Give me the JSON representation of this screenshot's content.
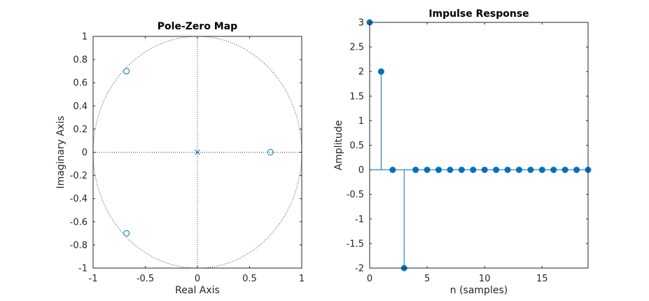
{
  "chart_data": [
    {
      "type": "scatter",
      "title": "Pole-Zero Map",
      "xlabel": "Real Axis",
      "ylabel": "Imaginary Axis",
      "xlim": [
        -1,
        1
      ],
      "ylim": [
        -1,
        1
      ],
      "xticks": [
        -1,
        -0.5,
        0,
        0.5,
        1
      ],
      "xtick_labels": [
        "-1",
        "-0.5",
        "0",
        "0.5",
        "1"
      ],
      "yticks": [
        -1,
        -0.8,
        -0.6,
        -0.4,
        -0.2,
        0,
        0.2,
        0.4,
        0.6,
        0.8,
        1
      ],
      "ytick_labels": [
        "-1",
        "-0.8",
        "-0.6",
        "-0.4",
        "-0.2",
        "0",
        "0.2",
        "0.4",
        "0.6",
        "0.8",
        "1"
      ],
      "unit_circle": true,
      "zeros": [
        {
          "re": -0.68,
          "im": 0.7
        },
        {
          "re": -0.68,
          "im": -0.7
        },
        {
          "re": 0.7,
          "im": 0
        }
      ],
      "poles": [
        {
          "re": 0,
          "im": 0
        }
      ],
      "color": "#0072bd"
    },
    {
      "type": "stem",
      "title": "Impulse Response",
      "xlabel": "n (samples)",
      "ylabel": "Amplitude",
      "xlim": [
        0,
        19
      ],
      "ylim": [
        -2,
        3
      ],
      "xticks": [
        0,
        5,
        10,
        15
      ],
      "xtick_labels": [
        "0",
        "5",
        "10",
        "15"
      ],
      "yticks": [
        -2,
        -1.5,
        -1,
        -0.5,
        0,
        0.5,
        1,
        1.5,
        2,
        2.5,
        3
      ],
      "ytick_labels": [
        "-2",
        "-1.5",
        "-1",
        "-0.5",
        "0",
        "0.5",
        "1",
        "1.5",
        "2",
        "2.5",
        "3"
      ],
      "n": [
        0,
        1,
        2,
        3,
        4,
        5,
        6,
        7,
        8,
        9,
        10,
        11,
        12,
        13,
        14,
        15,
        16,
        17,
        18,
        19
      ],
      "values": [
        3,
        2,
        0,
        -2,
        0,
        0,
        0,
        0,
        0,
        0,
        0,
        0,
        0,
        0,
        0,
        0,
        0,
        0,
        0,
        0
      ],
      "color": "#0072bd"
    }
  ]
}
